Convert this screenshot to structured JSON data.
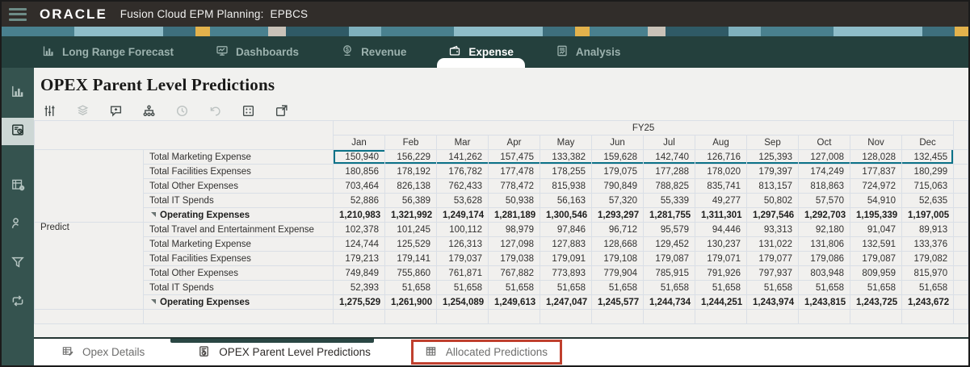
{
  "topbar": {
    "brand": "ORACLE",
    "app_name": "Fusion Cloud EPM Planning:",
    "environment": "EPBCS"
  },
  "navbar": {
    "tabs": [
      {
        "label": "Long Range Forecast",
        "icon": "bar-chart-icon",
        "active": false
      },
      {
        "label": "Dashboards",
        "icon": "dashboard-monitor-icon",
        "active": false
      },
      {
        "label": "Revenue",
        "icon": "revenue-coin-icon",
        "active": false
      },
      {
        "label": "Expense",
        "icon": "expense-wallet-icon",
        "active": true
      },
      {
        "label": "Analysis",
        "icon": "analysis-report-icon",
        "active": false
      }
    ]
  },
  "sidebar": {
    "items": [
      {
        "icon": "bar-chart-icon",
        "active": false
      },
      {
        "icon": "form-chart-icon",
        "active": true
      },
      {
        "icon": "table-gear-icon",
        "active": false
      },
      {
        "icon": "person-chart-icon",
        "active": false
      },
      {
        "icon": "funnel-icon",
        "active": false
      },
      {
        "icon": "process-sync-icon",
        "active": false
      }
    ]
  },
  "page": {
    "title": "OPEX Parent Level Predictions"
  },
  "toolbar": {
    "icons": [
      {
        "name": "adjust-sliders-icon",
        "enabled": true
      },
      {
        "name": "layers-cube-icon",
        "enabled": false
      },
      {
        "name": "add-comment-icon",
        "enabled": true
      },
      {
        "name": "hierarchy-icon",
        "enabled": true
      },
      {
        "name": "history-icon",
        "enabled": false
      },
      {
        "name": "undo-icon",
        "enabled": false
      },
      {
        "name": "grid-options-icon",
        "enabled": true
      },
      {
        "name": "export-window-icon",
        "enabled": true
      }
    ]
  },
  "table": {
    "year": "FY25",
    "months": [
      "Jan",
      "Feb",
      "Mar",
      "Apr",
      "May",
      "Jun",
      "Jul",
      "Aug",
      "Sep",
      "Oct",
      "Nov",
      "Dec"
    ],
    "sections": [
      {
        "pov_label": "",
        "rows": [
          {
            "label": "Total Marketing Expense",
            "bold": false,
            "parent": false,
            "selected": true,
            "values": [
              "150,940",
              "156,229",
              "141,262",
              "157,475",
              "133,382",
              "159,628",
              "142,740",
              "126,716",
              "125,393",
              "127,008",
              "128,028",
              "132,455"
            ]
          },
          {
            "label": "Total Facilities Expenses",
            "bold": false,
            "parent": false,
            "selected": false,
            "values": [
              "180,856",
              "178,192",
              "176,782",
              "177,478",
              "178,255",
              "179,075",
              "177,288",
              "178,020",
              "179,397",
              "174,249",
              "177,837",
              "180,299"
            ]
          },
          {
            "label": "Total Other Expenses",
            "bold": false,
            "parent": false,
            "selected": false,
            "values": [
              "703,464",
              "826,138",
              "762,433",
              "778,472",
              "815,938",
              "790,849",
              "788,825",
              "835,741",
              "813,157",
              "818,863",
              "724,972",
              "715,063"
            ]
          },
          {
            "label": "Total IT Spends",
            "bold": false,
            "parent": false,
            "selected": false,
            "values": [
              "52,886",
              "56,389",
              "53,628",
              "50,938",
              "56,163",
              "57,320",
              "55,339",
              "49,277",
              "50,802",
              "57,570",
              "54,910",
              "52,635"
            ]
          },
          {
            "label": "Operating Expenses",
            "bold": true,
            "parent": true,
            "selected": false,
            "values": [
              "1,210,983",
              "1,321,992",
              "1,249,174",
              "1,281,189",
              "1,300,546",
              "1,293,297",
              "1,281,755",
              "1,311,301",
              "1,297,546",
              "1,292,703",
              "1,195,339",
              "1,197,005"
            ]
          }
        ]
      },
      {
        "pov_label": "Predict",
        "rows": [
          {
            "label": "Total Travel and Entertainment Expense",
            "bold": false,
            "parent": false,
            "selected": false,
            "values": [
              "102,378",
              "101,245",
              "100,112",
              "98,979",
              "97,846",
              "96,712",
              "95,579",
              "94,446",
              "93,313",
              "92,180",
              "91,047",
              "89,913"
            ]
          },
          {
            "label": "Total Marketing Expense",
            "bold": false,
            "parent": false,
            "selected": false,
            "values": [
              "124,744",
              "125,529",
              "126,313",
              "127,098",
              "127,883",
              "128,668",
              "129,452",
              "130,237",
              "131,022",
              "131,806",
              "132,591",
              "133,376"
            ]
          },
          {
            "label": "Total Facilities Expenses",
            "bold": false,
            "parent": false,
            "selected": false,
            "values": [
              "179,213",
              "179,141",
              "179,037",
              "179,038",
              "179,091",
              "179,108",
              "179,087",
              "179,071",
              "179,077",
              "179,086",
              "179,087",
              "179,082"
            ]
          },
          {
            "label": "Total Other Expenses",
            "bold": false,
            "parent": false,
            "selected": false,
            "values": [
              "749,849",
              "755,860",
              "761,871",
              "767,882",
              "773,893",
              "779,904",
              "785,915",
              "791,926",
              "797,937",
              "803,948",
              "809,959",
              "815,970"
            ]
          },
          {
            "label": "Total IT Spends",
            "bold": false,
            "parent": false,
            "selected": false,
            "values": [
              "52,393",
              "51,658",
              "51,658",
              "51,658",
              "51,658",
              "51,658",
              "51,658",
              "51,658",
              "51,658",
              "51,658",
              "51,658",
              "51,658"
            ]
          },
          {
            "label": "Operating Expenses",
            "bold": true,
            "parent": true,
            "selected": false,
            "values": [
              "1,275,529",
              "1,261,900",
              "1,254,089",
              "1,249,613",
              "1,247,047",
              "1,245,577",
              "1,244,734",
              "1,244,251",
              "1,243,974",
              "1,243,815",
              "1,243,725",
              "1,243,672"
            ]
          }
        ]
      }
    ]
  },
  "footer": {
    "tabs": [
      {
        "label": "Opex Details",
        "icon": "grid-pencil-icon",
        "active": false,
        "highlighted": false
      },
      {
        "label": "OPEX Parent Level Predictions",
        "icon": "form-chart-icon",
        "active": true,
        "highlighted": false
      },
      {
        "label": "Allocated Predictions",
        "icon": "table-grid-icon",
        "active": false,
        "highlighted": true
      }
    ]
  },
  "colors": {
    "topbar_bg": "#312d2a",
    "nav_bg": "#24403d",
    "sidebar_bg": "#35534f",
    "active_item_bg": "#cdd7d5",
    "content_bg": "#f1f1ef",
    "selection_teal": "#0c7287",
    "annotation_red": "#c0402e",
    "footer_indicator": "#2a4744"
  }
}
